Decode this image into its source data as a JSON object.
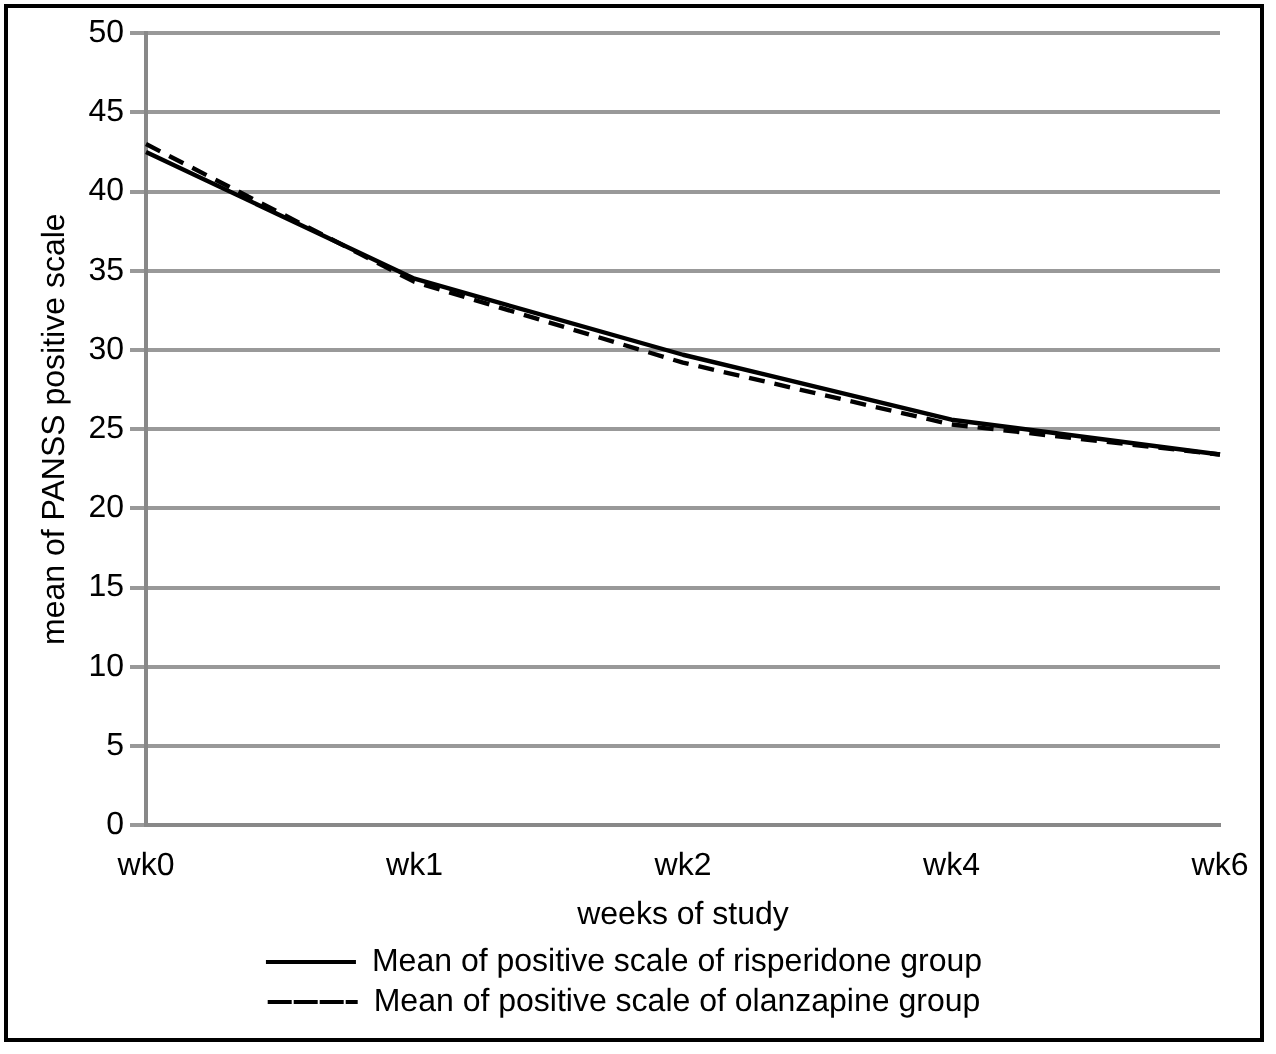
{
  "chart_data": {
    "type": "line",
    "xlabel": "weeks of study",
    "ylabel": "mean of PANSS positive scale",
    "categories": [
      "wk0",
      "wk1",
      "wk2",
      "wk4",
      "wk6"
    ],
    "series": [
      {
        "name": "Mean of positive scale of risperidone group",
        "color": "#000000",
        "line_style": "solid",
        "values": [
          42.5,
          34.5,
          29.7,
          25.6,
          23.4
        ]
      },
      {
        "name": "Mean of positive scale of olanzapine group",
        "color": "#000000",
        "line_style": "dashed",
        "values": [
          43,
          34.3,
          29.2,
          25.3,
          23.4
        ]
      }
    ],
    "ylim": [
      0,
      50
    ],
    "yticks": [
      0,
      5,
      10,
      15,
      20,
      25,
      30,
      35,
      40,
      45,
      50
    ],
    "grid": "y",
    "legend": "bottom",
    "marker": "none"
  }
}
